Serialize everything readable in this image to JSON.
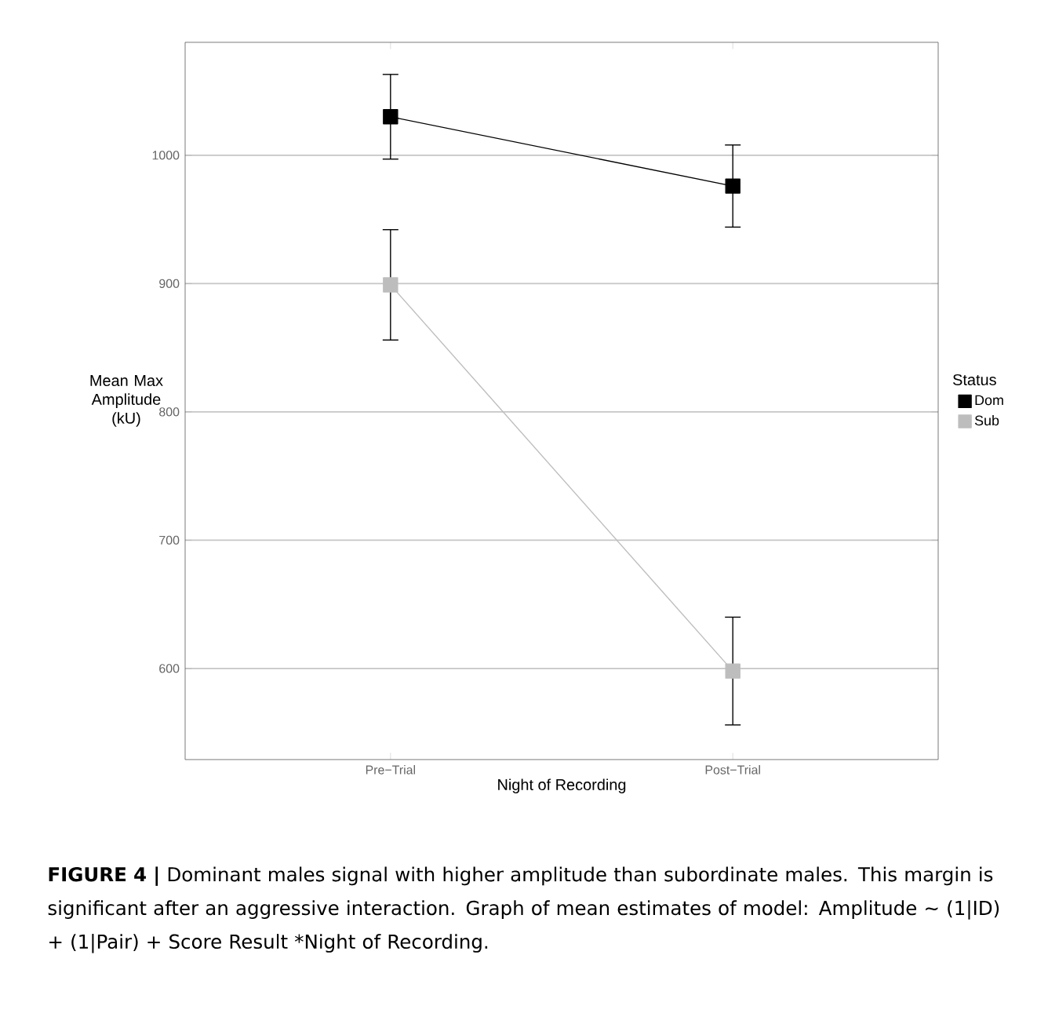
{
  "chart_data": {
    "type": "line",
    "xlabel": "Night of Recording",
    "ylabel": "Mean Max Amplitude (kU)",
    "legend_title": "Status",
    "categories": [
      "Pre−Trial",
      "Post−Trial"
    ],
    "series": [
      {
        "name": "Dom",
        "color": "#000000",
        "values": [
          1030,
          976
        ],
        "errors": [
          33,
          32
        ]
      },
      {
        "name": "Sub",
        "color": "#bdbdbd",
        "values": [
          899,
          598
        ],
        "errors": [
          43,
          42
        ]
      }
    ],
    "ylim": [
      529,
      1088
    ],
    "yticks": [
      600,
      700,
      800,
      900,
      1000
    ],
    "grid": "y",
    "legend": "right",
    "marker": "square",
    "line_style": "solid",
    "annotations": [
      "**FIGURE 4 |** Dominant males signal with higher amplitude than subordinate males. This margin is significant after an aggressive interaction. Graph of mean estimates of model: Amplitude ∼ (1|ID) + (1|Pair) + Score Result *Night of Recording."
    ]
  }
}
